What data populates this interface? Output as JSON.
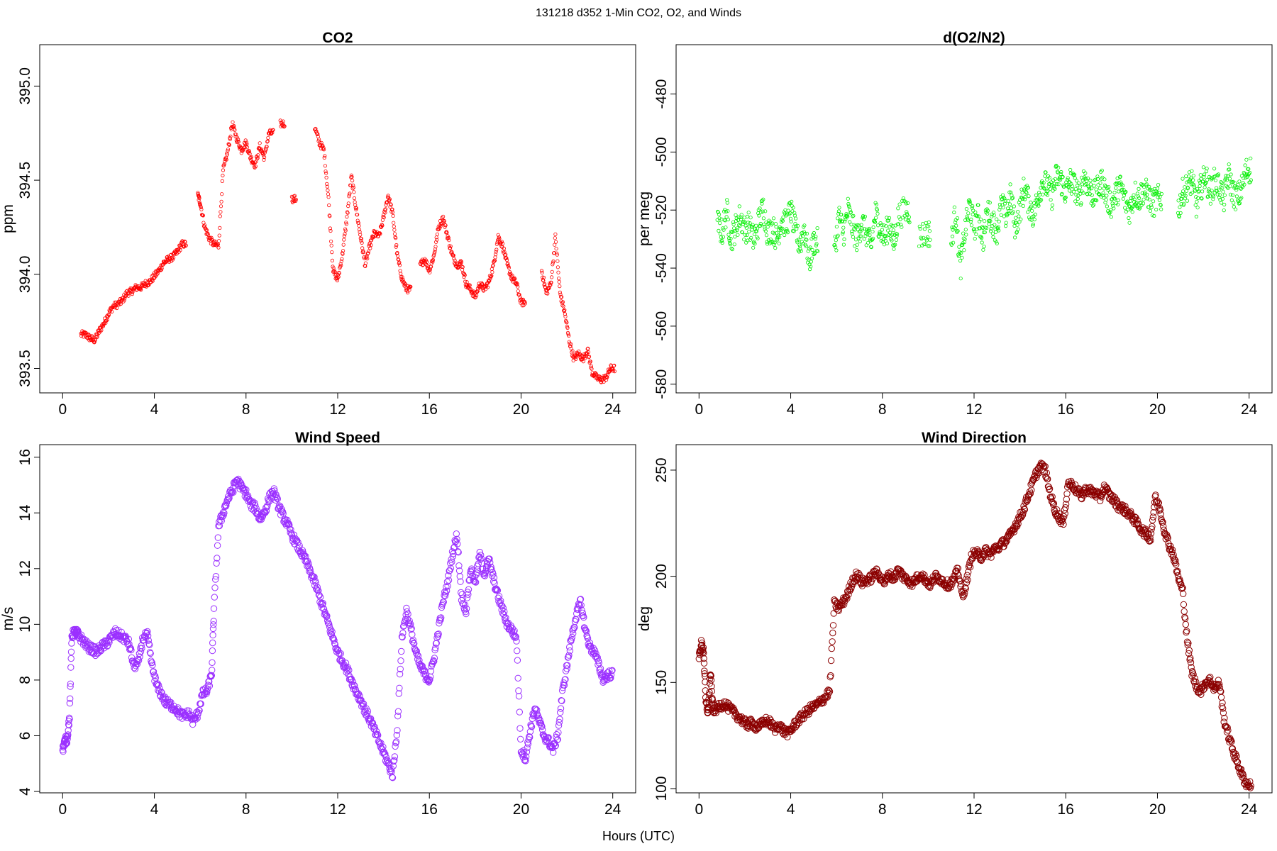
{
  "figure": {
    "suptitle": "131218   d352   1-Min CO2, O2, and Winds",
    "xlabel": "Hours (UTC)"
  },
  "chart_data": [
    {
      "type": "scatter",
      "title": "CO2",
      "xlabel": "",
      "ylabel": "ppm",
      "xlim": [
        -1,
        25
      ],
      "ylim": [
        393.37,
        395.22
      ],
      "xticks": [
        0,
        4,
        8,
        12,
        16,
        20,
        24
      ],
      "yticks": [
        393.5,
        394.0,
        394.5,
        395.0
      ],
      "ytick_labels": [
        "393.5",
        "394.0",
        "394.5",
        "395.0"
      ],
      "color": "#ff0000",
      "marker_radius_scale": "small",
      "series": [
        {
          "x": [
            0.8,
            1.0,
            1.2,
            1.4,
            1.6,
            1.8,
            2.0,
            2.2,
            2.4,
            2.6,
            2.8,
            3.0,
            3.2,
            3.4,
            3.6,
            3.8,
            4.0,
            4.2,
            4.4,
            4.6,
            4.8,
            5.0,
            5.2,
            5.9,
            6.0,
            6.2,
            6.4,
            6.6,
            6.8,
            7.0,
            7.2,
            7.4,
            7.6,
            7.8,
            8.0,
            8.2,
            8.4,
            8.6,
            8.8,
            9.0,
            9.5,
            10.0,
            11.0,
            11.2,
            11.4,
            11.6,
            11.8,
            12.0,
            12.2,
            12.4,
            12.6,
            12.8,
            13.0,
            13.2,
            13.4,
            13.6,
            13.8,
            14.0,
            14.2,
            14.4,
            14.6,
            14.8,
            15.0,
            15.6,
            15.8,
            16.0,
            16.2,
            16.4,
            16.6,
            16.8,
            17.0,
            17.2,
            17.4,
            17.6,
            17.8,
            18.0,
            18.2,
            18.4,
            18.6,
            18.8,
            19.0,
            19.2,
            19.4,
            19.6,
            19.8,
            20.0,
            20.9,
            21.1,
            21.3,
            21.5,
            21.7,
            21.9,
            22.1,
            22.3,
            22.5,
            22.7,
            22.9,
            23.1,
            23.3,
            23.5,
            23.7,
            23.9
          ],
          "y": [
            393.68,
            393.68,
            393.66,
            393.65,
            393.7,
            393.74,
            393.79,
            393.83,
            393.84,
            393.86,
            393.9,
            393.91,
            393.93,
            393.93,
            393.95,
            393.96,
            393.99,
            394.02,
            394.06,
            394.08,
            394.09,
            394.12,
            394.16,
            394.42,
            394.38,
            394.25,
            394.19,
            394.16,
            394.15,
            394.55,
            394.65,
            394.8,
            394.72,
            394.66,
            394.7,
            394.62,
            394.58,
            394.68,
            394.62,
            394.75,
            394.8,
            394.4,
            394.78,
            394.7,
            394.66,
            394.4,
            394.02,
            393.97,
            394.1,
            394.3,
            394.52,
            394.35,
            394.2,
            394.05,
            394.15,
            394.22,
            394.2,
            394.3,
            394.42,
            394.32,
            394.1,
            393.98,
            393.92,
            394.05,
            394.08,
            394.02,
            394.1,
            394.25,
            394.3,
            394.2,
            394.1,
            394.05,
            394.06,
            393.95,
            393.92,
            393.88,
            393.95,
            393.92,
            393.96,
            394.05,
            394.2,
            394.15,
            394.05,
            393.98,
            393.95,
            393.85,
            394.02,
            393.9,
            393.95,
            394.2,
            393.9,
            393.8,
            393.65,
            393.55,
            393.58,
            393.55,
            393.6,
            393.48,
            393.45,
            393.44,
            393.45,
            393.5
          ]
        }
      ]
    },
    {
      "type": "scatter",
      "title": "d(O2/N2)",
      "xlabel": "",
      "ylabel": "per meg",
      "xlim": [
        -1,
        25
      ],
      "ylim": [
        -583,
        -463
      ],
      "xticks": [
        0,
        4,
        8,
        12,
        16,
        20,
        24
      ],
      "yticks": [
        -580,
        -560,
        -540,
        -520,
        -500,
        -480
      ],
      "color": "#00ee00",
      "marker_radius_scale": "small",
      "series": [
        {
          "x": [
            0.8,
            1.0,
            1.2,
            1.4,
            1.6,
            1.8,
            2.0,
            2.2,
            2.4,
            2.6,
            2.8,
            3.0,
            3.2,
            3.4,
            3.6,
            3.8,
            4.0,
            4.2,
            4.4,
            4.6,
            4.8,
            5.0,
            5.9,
            6.1,
            6.3,
            6.5,
            6.7,
            6.9,
            7.1,
            7.3,
            7.5,
            7.7,
            7.9,
            8.1,
            8.3,
            8.5,
            8.7,
            9.0,
            9.6,
            9.9,
            11.0,
            11.2,
            11.4,
            11.6,
            11.8,
            12.0,
            12.2,
            12.4,
            12.6,
            12.8,
            13.0,
            13.2,
            13.4,
            13.6,
            13.8,
            14.0,
            14.2,
            14.4,
            14.6,
            14.8,
            15.0,
            15.2,
            15.4,
            15.6,
            15.8,
            16.0,
            16.2,
            16.4,
            16.6,
            16.8,
            17.0,
            17.2,
            17.4,
            17.6,
            17.8,
            18.0,
            18.2,
            18.4,
            18.6,
            18.8,
            19.0,
            19.2,
            19.4,
            19.6,
            19.8,
            20.0,
            20.9,
            21.1,
            21.3,
            21.5,
            21.7,
            21.9,
            22.1,
            22.3,
            22.5,
            22.7,
            22.9,
            23.1,
            23.3,
            23.5,
            23.7,
            23.9
          ],
          "y": [
            -524,
            -528,
            -520,
            -530,
            -526,
            -522,
            -527,
            -525,
            -531,
            -524,
            -519,
            -528,
            -526,
            -530,
            -523,
            -525,
            -520,
            -527,
            -532,
            -526,
            -538,
            -531,
            -535,
            -522,
            -528,
            -520,
            -526,
            -530,
            -524,
            -528,
            -533,
            -521,
            -526,
            -530,
            -524,
            -532,
            -522,
            -520,
            -529,
            -528,
            -532,
            -520,
            -540,
            -528,
            -518,
            -526,
            -522,
            -530,
            -520,
            -524,
            -527,
            -518,
            -522,
            -515,
            -526,
            -520,
            -512,
            -518,
            -522,
            -515,
            -510,
            -512,
            -515,
            -508,
            -510,
            -514,
            -510,
            -512,
            -516,
            -508,
            -512,
            -515,
            -513,
            -510,
            -516,
            -518,
            -514,
            -512,
            -517,
            -520,
            -514,
            -516,
            -513,
            -515,
            -518,
            -516,
            -520,
            -514,
            -512,
            -510,
            -518,
            -512,
            -508,
            -514,
            -510,
            -512,
            -516,
            -508,
            -514,
            -516,
            -512,
            -506
          ]
        }
      ]
    },
    {
      "type": "scatter",
      "title": "Wind Speed",
      "xlabel": "",
      "ylabel": "m/s",
      "xlim": [
        -1,
        25
      ],
      "ylim": [
        3.95,
        16.45
      ],
      "xticks": [
        0,
        4,
        8,
        12,
        16,
        20,
        24
      ],
      "yticks": [
        4,
        6,
        8,
        10,
        12,
        14,
        16
      ],
      "color": "#9b30ff",
      "marker_radius_scale": "large",
      "series": [
        {
          "x": [
            0.0,
            0.1,
            0.2,
            0.3,
            0.4,
            0.5,
            0.6,
            0.7,
            0.9,
            1.1,
            1.3,
            1.5,
            1.7,
            1.9,
            2.1,
            2.3,
            2.5,
            2.7,
            2.9,
            3.1,
            3.3,
            3.5,
            3.7,
            3.9,
            4.1,
            4.3,
            4.5,
            4.7,
            4.9,
            5.1,
            5.3,
            5.5,
            5.7,
            5.9,
            6.1,
            6.3,
            6.5,
            6.6,
            6.8,
            7.0,
            7.2,
            7.4,
            7.6,
            7.8,
            8.0,
            8.2,
            8.4,
            8.6,
            8.8,
            9.0,
            9.2,
            9.4,
            9.6,
            9.8,
            10.0,
            10.2,
            10.4,
            10.6,
            10.8,
            11.0,
            11.2,
            11.4,
            11.6,
            11.8,
            12.0,
            12.2,
            12.4,
            12.6,
            12.8,
            13.0,
            13.2,
            13.4,
            13.6,
            13.8,
            14.0,
            14.2,
            14.4,
            14.6,
            14.8,
            15.0,
            15.2,
            15.4,
            15.6,
            15.8,
            16.0,
            16.2,
            16.4,
            16.6,
            16.8,
            17.0,
            17.2,
            17.4,
            17.6,
            17.8,
            18.0,
            18.2,
            18.4,
            18.6,
            18.8,
            19.0,
            19.2,
            19.4,
            19.6,
            19.8,
            20.0,
            20.2,
            20.4,
            20.6,
            20.8,
            21.0,
            21.2,
            21.4,
            21.6,
            21.8,
            22.0,
            22.2,
            22.4,
            22.6,
            22.8,
            23.0,
            23.2,
            23.4,
            23.6,
            23.8
          ],
          "y": [
            5.5,
            5.8,
            5.9,
            6.7,
            9.6,
            9.7,
            9.7,
            9.6,
            9.4,
            9.2,
            9.1,
            9.0,
            9.2,
            9.3,
            9.5,
            9.7,
            9.6,
            9.5,
            9.3,
            8.5,
            8.6,
            9.5,
            9.6,
            8.5,
            7.8,
            7.5,
            7.2,
            7.1,
            7.0,
            6.8,
            6.7,
            6.8,
            6.5,
            6.8,
            7.5,
            7.6,
            8.2,
            10.5,
            13.5,
            14.0,
            14.5,
            14.8,
            15.2,
            14.9,
            14.7,
            14.3,
            14.2,
            13.8,
            14.0,
            14.5,
            14.8,
            14.3,
            13.9,
            13.6,
            13.2,
            12.9,
            12.6,
            12.3,
            11.9,
            11.5,
            11.0,
            10.5,
            10.0,
            9.5,
            9.0,
            8.7,
            8.4,
            8.0,
            7.6,
            7.3,
            6.9,
            6.6,
            6.2,
            5.8,
            5.4,
            5.0,
            4.6,
            6.3,
            9.5,
            10.5,
            9.8,
            9.0,
            8.5,
            8.2,
            8.0,
            8.8,
            9.8,
            10.8,
            11.5,
            12.5,
            13.2,
            11.0,
            10.5,
            12.0,
            11.5,
            12.5,
            11.8,
            12.3,
            11.6,
            11.0,
            10.5,
            10.0,
            9.8,
            9.5,
            5.5,
            5.2,
            6.2,
            7.0,
            6.5,
            6.0,
            5.8,
            5.5,
            6.0,
            7.5,
            8.5,
            9.5,
            10.3,
            10.8,
            9.8,
            9.2,
            9.0,
            8.5,
            8.0,
            8.2
          ]
        }
      ]
    },
    {
      "type": "scatter",
      "title": "Wind Direction",
      "xlabel": "",
      "ylabel": "deg",
      "xlim": [
        -1,
        25
      ],
      "ylim": [
        98,
        262
      ],
      "xticks": [
        0,
        4,
        8,
        12,
        16,
        20,
        24
      ],
      "yticks": [
        100,
        150,
        200,
        250
      ],
      "color": "#8b0000",
      "marker_radius_scale": "large",
      "series": [
        {
          "x": [
            0.0,
            0.1,
            0.2,
            0.3,
            0.4,
            0.5,
            0.6,
            0.7,
            0.9,
            1.1,
            1.3,
            1.5,
            1.7,
            1.9,
            2.1,
            2.3,
            2.5,
            2.7,
            2.9,
            3.1,
            3.3,
            3.5,
            3.7,
            3.9,
            4.1,
            4.3,
            4.5,
            4.7,
            4.9,
            5.1,
            5.3,
            5.5,
            5.7,
            5.9,
            6.1,
            6.3,
            6.5,
            6.7,
            6.9,
            7.1,
            7.3,
            7.5,
            7.7,
            7.9,
            8.1,
            8.3,
            8.5,
            8.7,
            8.9,
            9.1,
            9.3,
            9.5,
            9.7,
            9.9,
            10.1,
            10.3,
            10.5,
            10.7,
            10.9,
            11.1,
            11.3,
            11.5,
            11.7,
            11.9,
            12.1,
            12.3,
            12.5,
            12.7,
            12.9,
            13.1,
            13.3,
            13.5,
            13.7,
            13.9,
            14.1,
            14.3,
            14.5,
            14.7,
            14.9,
            15.1,
            15.3,
            15.5,
            15.7,
            15.9,
            16.1,
            16.3,
            16.5,
            16.7,
            16.9,
            17.1,
            17.3,
            17.5,
            17.7,
            17.9,
            18.1,
            18.3,
            18.5,
            18.7,
            18.9,
            19.1,
            19.3,
            19.5,
            19.7,
            19.9,
            20.1,
            20.3,
            20.5,
            20.7,
            20.9,
            21.1,
            21.3,
            21.5,
            21.7,
            21.9,
            22.1,
            22.3,
            22.5,
            22.7,
            22.9,
            23.1,
            23.3,
            23.5,
            23.7,
            23.9
          ],
          "y": [
            162,
            168,
            165,
            140,
            136,
            155,
            138,
            137,
            139,
            140,
            138,
            136,
            134,
            132,
            130,
            131,
            129,
            130,
            132,
            131,
            128,
            130,
            127,
            126,
            129,
            132,
            134,
            136,
            138,
            139,
            141,
            143,
            146,
            187,
            185,
            188,
            192,
            198,
            201,
            197,
            198,
            199,
            202,
            200,
            197,
            201,
            199,
            203,
            200,
            198,
            197,
            199,
            201,
            198,
            196,
            200,
            199,
            197,
            196,
            198,
            203,
            190,
            199,
            210,
            211,
            209,
            212,
            210,
            213,
            214,
            216,
            218,
            222,
            226,
            230,
            236,
            242,
            248,
            252,
            250,
            240,
            232,
            228,
            225,
            244,
            243,
            240,
            238,
            241,
            240,
            239,
            237,
            242,
            238,
            236,
            233,
            232,
            230,
            228,
            225,
            222,
            220,
            218,
            237,
            232,
            222,
            215,
            210,
            200,
            193,
            170,
            155,
            148,
            146,
            150,
            151,
            147,
            150,
            133,
            125,
            118,
            112,
            106,
            102
          ]
        }
      ]
    }
  ]
}
